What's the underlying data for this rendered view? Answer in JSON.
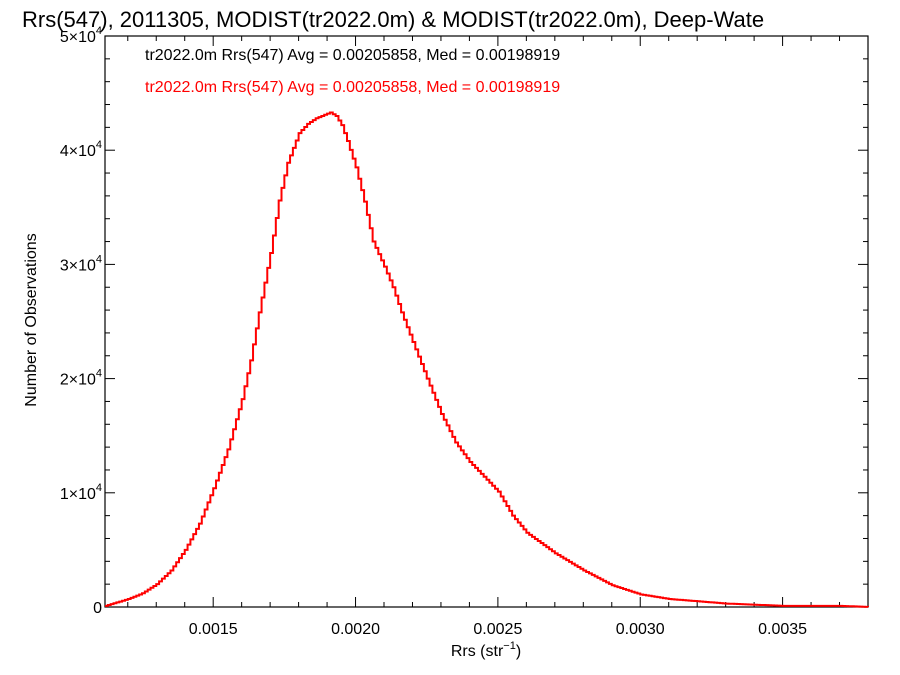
{
  "title": "Rrs(547), 2011305, MODIST(tr2022.0m) & MODIST(tr2022.0m), Deep-Wate",
  "annotations": [
    {
      "text": "tr2022.0m Rrs(547) Avg = 0.00205858, Med = 0.00198919",
      "color": "#000000"
    },
    {
      "text": "tr2022.0m Rrs(547) Avg = 0.00205858, Med = 0.00198919",
      "color": "#ff0000"
    }
  ],
  "chart_data": {
    "type": "line",
    "step": true,
    "title": "Rrs(547), 2011305, MODIST(tr2022.0m) & MODIST(tr2022.0m), Deep-Wate",
    "xlabel": "Rrs (str⁻¹)",
    "ylabel": "Number of Observations",
    "xlim": [
      0.00112,
      0.0038
    ],
    "ylim": [
      0,
      50000
    ],
    "grid": false,
    "x_ticks": [
      {
        "value": 0.0015,
        "label": "0.0015"
      },
      {
        "value": 0.002,
        "label": "0.0020"
      },
      {
        "value": 0.0025,
        "label": "0.0025"
      },
      {
        "value": 0.003,
        "label": "0.0030"
      },
      {
        "value": 0.0035,
        "label": "0.0035"
      }
    ],
    "y_ticks": [
      {
        "value": 0,
        "label": "0"
      },
      {
        "value": 10000,
        "label": "1×10",
        "exp": "4"
      },
      {
        "value": 20000,
        "label": "2×10",
        "exp": "4"
      },
      {
        "value": 30000,
        "label": "3×10",
        "exp": "4"
      },
      {
        "value": 40000,
        "label": "4×10",
        "exp": "4"
      },
      {
        "value": 50000,
        "label": "5×10",
        "exp": "4"
      }
    ],
    "series": [
      {
        "color": "#ff0000",
        "x": [
          0.00112,
          0.0012,
          0.00125,
          0.0013,
          0.00135,
          0.0014,
          0.00145,
          0.0015,
          0.00155,
          0.0016,
          0.00163,
          0.00166,
          0.0017,
          0.00173,
          0.00176,
          0.0018,
          0.00183,
          0.00186,
          0.00189,
          0.00191,
          0.00193,
          0.00195,
          0.00197,
          0.002,
          0.00203,
          0.00206,
          0.0021,
          0.00213,
          0.00216,
          0.0022,
          0.00225,
          0.0023,
          0.00235,
          0.0024,
          0.00245,
          0.0025,
          0.00255,
          0.0026,
          0.00265,
          0.0027,
          0.0028,
          0.0029,
          0.003,
          0.0031,
          0.0032,
          0.0033,
          0.0034,
          0.0035,
          0.0036,
          0.0037,
          0.0038
        ],
        "y": [
          100,
          700,
          1200,
          2000,
          3200,
          5000,
          7300,
          10400,
          13800,
          18200,
          21600,
          25800,
          31000,
          35600,
          38900,
          41500,
          42300,
          42800,
          43100,
          43300,
          43000,
          42200,
          40800,
          38500,
          35500,
          32000,
          29800,
          28000,
          25800,
          23200,
          20000,
          16900,
          14400,
          12700,
          11400,
          10100,
          8000,
          6500,
          5600,
          4700,
          3200,
          1900,
          1100,
          700,
          500,
          300,
          200,
          100,
          100,
          100,
          0
        ]
      }
    ]
  }
}
